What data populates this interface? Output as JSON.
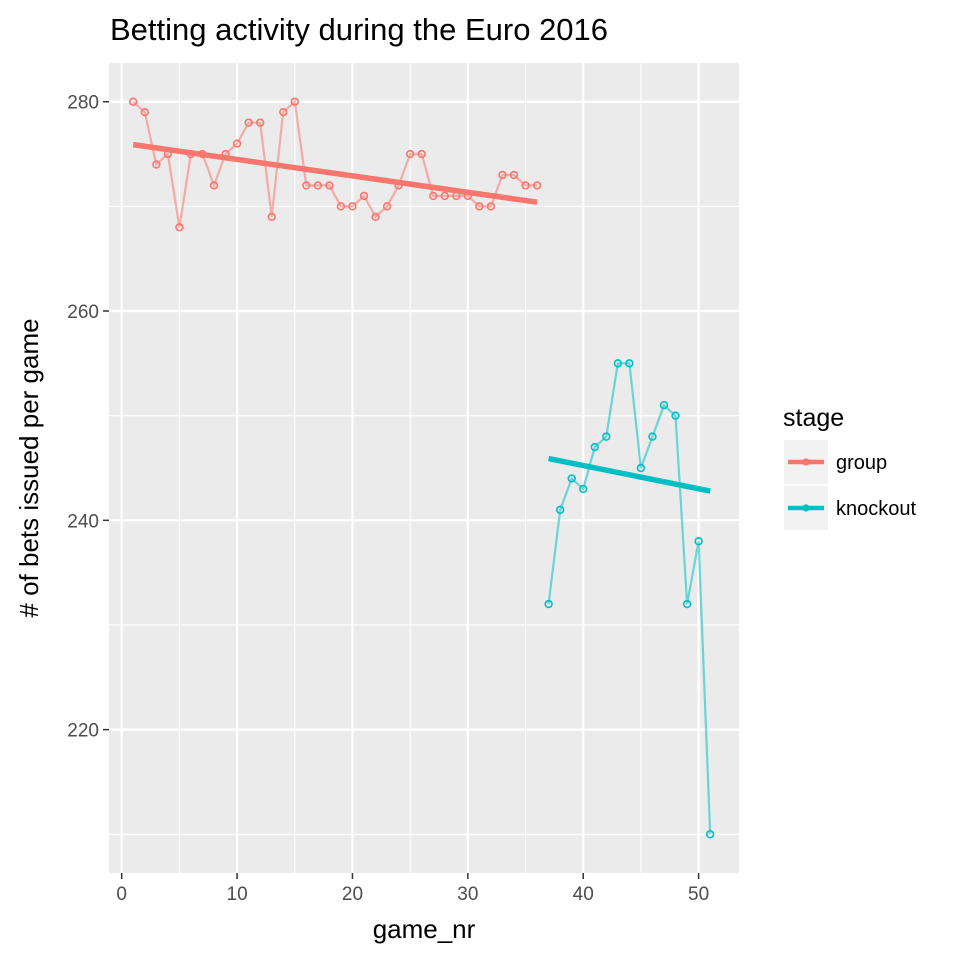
{
  "chart_data": {
    "type": "line",
    "title": "Betting activity during the Euro 2016",
    "xlabel": "game_nr",
    "ylabel": "# of bets issued per game",
    "xlim": [
      -1.1,
      53.5
    ],
    "ylim": [
      206.3,
      283.7
    ],
    "x_ticks": [
      0,
      10,
      20,
      30,
      40,
      50
    ],
    "y_ticks": [
      220,
      240,
      260,
      280
    ],
    "grid": true,
    "legend": {
      "title": "stage",
      "position": "right"
    },
    "series": [
      {
        "name": "group",
        "color": "#F8766D",
        "x": [
          1,
          2,
          3,
          4,
          5,
          6,
          7,
          8,
          9,
          10,
          11,
          12,
          13,
          14,
          15,
          16,
          17,
          18,
          19,
          20,
          21,
          22,
          23,
          24,
          25,
          26,
          27,
          28,
          29,
          30,
          31,
          32,
          33,
          34,
          35,
          36
        ],
        "y": [
          280,
          279,
          274,
          275,
          268,
          275,
          275,
          272,
          275,
          276,
          278,
          278,
          269,
          279,
          280,
          272,
          272,
          272,
          270,
          270,
          271,
          269,
          270,
          272,
          275,
          275,
          271,
          271,
          271,
          271,
          270,
          270,
          273,
          273,
          272,
          272
        ],
        "trend": {
          "x": [
            1,
            36
          ],
          "y": [
            275.9,
            270.4
          ]
        }
      },
      {
        "name": "knockout",
        "color": "#00BFC4",
        "x": [
          37,
          38,
          39,
          40,
          41,
          42,
          43,
          44,
          45,
          46,
          47,
          48,
          49,
          50,
          51
        ],
        "y": [
          232,
          241,
          244,
          243,
          247,
          248,
          255,
          255,
          245,
          248,
          251,
          250,
          232,
          238,
          210
        ],
        "trend": {
          "x": [
            37,
            51
          ],
          "y": [
            245.9,
            242.8
          ]
        }
      }
    ]
  }
}
